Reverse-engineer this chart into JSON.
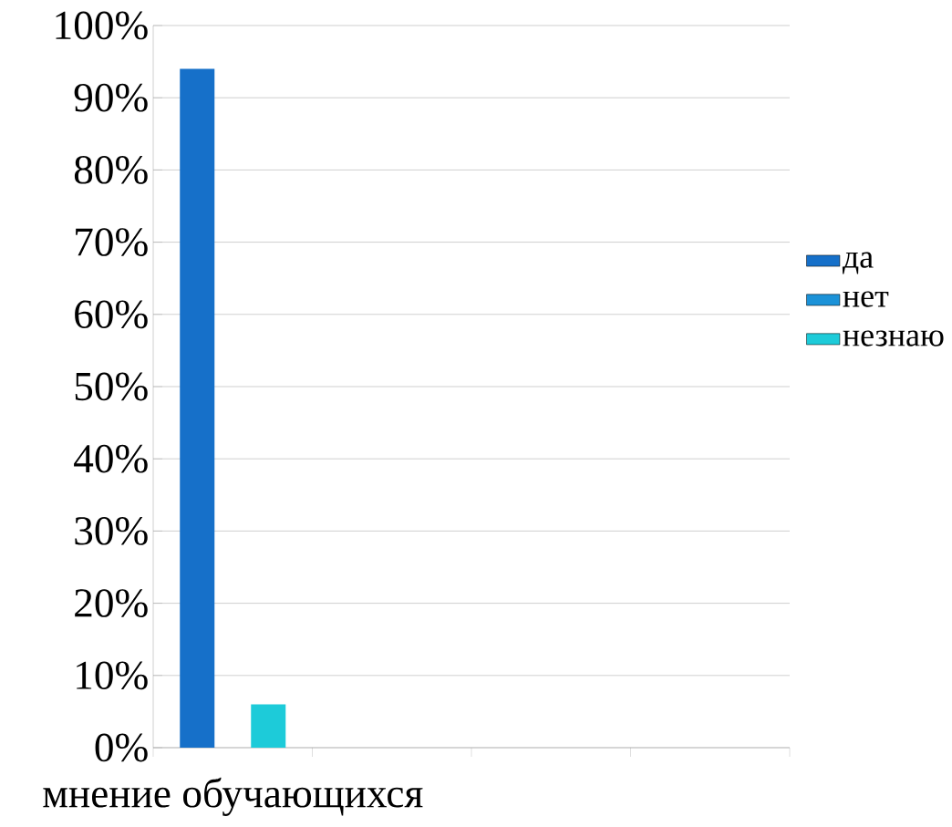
{
  "chart_data": {
    "type": "bar",
    "categories": [
      "мнение обучающихся",
      null,
      null,
      null
    ],
    "series": [
      {
        "name": "да",
        "color": "#1670c9",
        "values": [
          94,
          null,
          null,
          null
        ]
      },
      {
        "name": "нет",
        "color": "#1b92d8",
        "values": [
          0,
          null,
          null,
          null
        ]
      },
      {
        "name": "незнаю",
        "color": "#1dcbd9",
        "values": [
          6,
          null,
          null,
          null
        ]
      }
    ],
    "ylim": [
      0,
      100
    ],
    "yticks": [
      {
        "value": 0,
        "label": "0%"
      },
      {
        "value": 10,
        "label": "10%"
      },
      {
        "value": 20,
        "label": "20%"
      },
      {
        "value": 30,
        "label": "30%"
      },
      {
        "value": 40,
        "label": "40%"
      },
      {
        "value": 50,
        "label": "50%"
      },
      {
        "value": 60,
        "label": "60%"
      },
      {
        "value": 70,
        "label": "70%"
      },
      {
        "value": 80,
        "label": "80%"
      },
      {
        "value": 90,
        "label": "90%"
      },
      {
        "value": 100,
        "label": "100%"
      }
    ],
    "grid": "y",
    "legend": "right"
  }
}
